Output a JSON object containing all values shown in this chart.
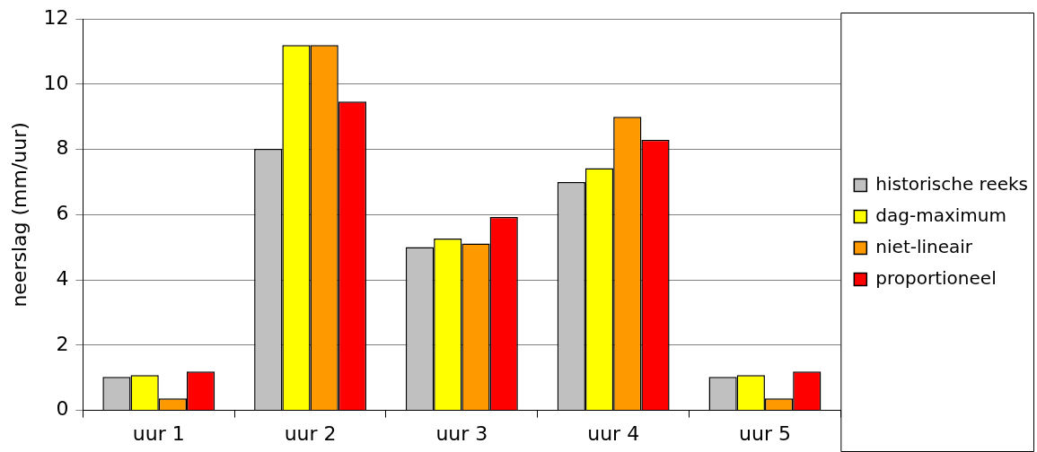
{
  "chart_data": {
    "type": "bar",
    "ylabel": "neerslag (mm/uur)",
    "categories": [
      "uur 1",
      "uur 2",
      "uur 3",
      "uur 4",
      "uur 5"
    ],
    "series": [
      {
        "name": "historische reeks",
        "color": "#c0c0c0",
        "values": [
          1.03,
          8.02,
          5.01,
          7.0,
          1.03
        ]
      },
      {
        "name": "dag-maximum",
        "color": "#ffff00",
        "values": [
          1.08,
          11.2,
          5.27,
          7.43,
          1.08
        ]
      },
      {
        "name": "niet-lineair",
        "color": "#ff9900",
        "values": [
          0.37,
          11.2,
          5.12,
          9.0,
          0.37
        ]
      },
      {
        "name": "proportioneel",
        "color": "#ff0000",
        "values": [
          1.19,
          9.47,
          5.93,
          8.29,
          1.19
        ]
      }
    ],
    "ylim": [
      0,
      12
    ],
    "yticks": [
      0,
      2,
      4,
      6,
      8,
      10,
      12
    ],
    "grid": "y",
    "legend": "right"
  }
}
